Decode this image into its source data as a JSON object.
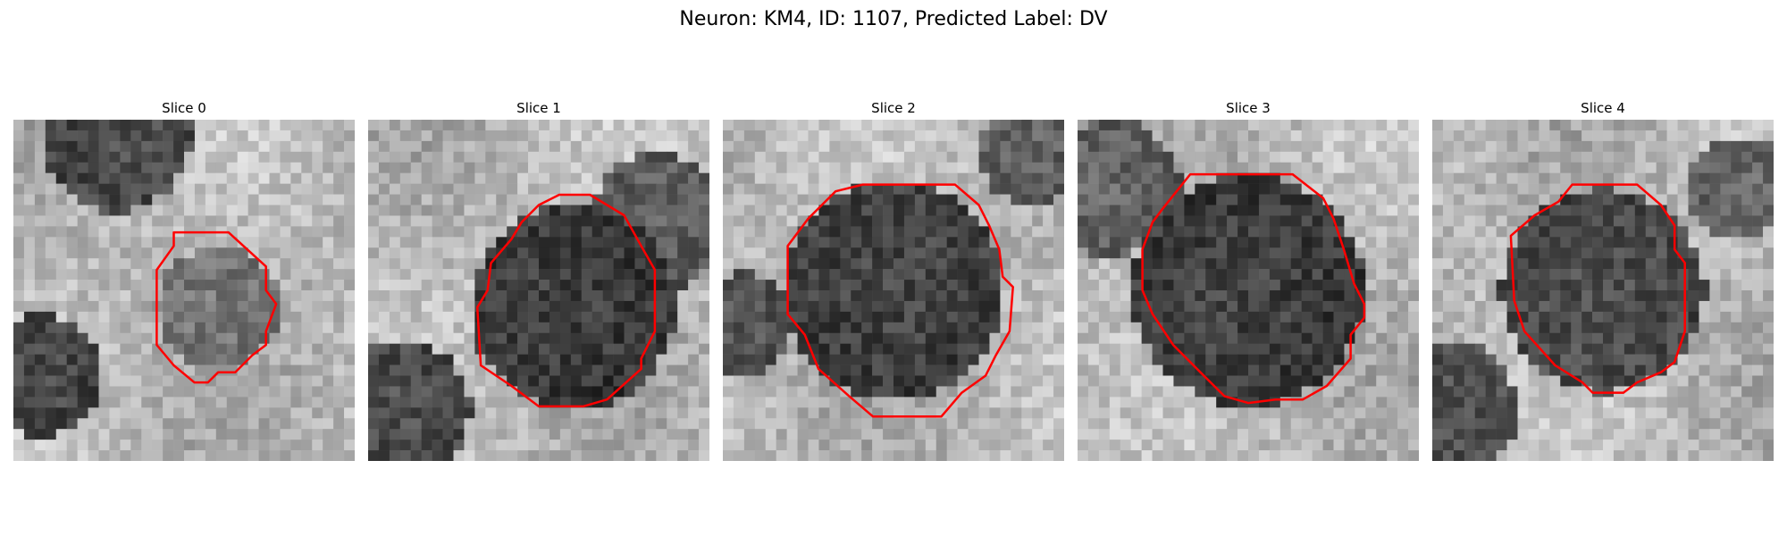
{
  "figure": {
    "title": "Neuron: KM4, ID: 1107, Predicted Label: DV",
    "contour_color": "#ff0000",
    "panels": [
      {
        "title": "Slice 0",
        "texture_seed": 11,
        "blobs": [
          [
            0.3,
            0.05,
            0.22,
            0.12
          ],
          [
            0.08,
            0.75,
            0.18,
            0.08
          ],
          [
            0.6,
            0.55,
            0.18,
            0.35
          ]
        ],
        "center": [
          0.6,
          0.7
        ]
      },
      {
        "title": "Slice 1",
        "texture_seed": 23,
        "blobs": [
          [
            0.6,
            0.55,
            0.3,
            0.05
          ],
          [
            0.1,
            0.85,
            0.2,
            0.1
          ],
          [
            0.85,
            0.3,
            0.2,
            0.2
          ]
        ],
        "center": [
          0.55,
          0.5
        ]
      },
      {
        "title": "Slice 2",
        "texture_seed": 37,
        "blobs": [
          [
            0.5,
            0.5,
            0.32,
            0.08
          ],
          [
            0.05,
            0.6,
            0.15,
            0.15
          ],
          [
            0.9,
            0.1,
            0.15,
            0.25
          ]
        ],
        "center": [
          0.5,
          0.5
        ]
      },
      {
        "title": "Slice 3",
        "texture_seed": 41,
        "blobs": [
          [
            0.5,
            0.5,
            0.34,
            0.05
          ],
          [
            0.1,
            0.2,
            0.2,
            0.25
          ]
        ],
        "center": [
          0.5,
          0.5
        ]
      },
      {
        "title": "Slice 4",
        "texture_seed": 53,
        "blobs": [
          [
            0.5,
            0.5,
            0.3,
            0.12
          ],
          [
            0.05,
            0.85,
            0.2,
            0.15
          ],
          [
            0.9,
            0.2,
            0.15,
            0.25
          ]
        ],
        "center": [
          0.5,
          0.5
        ]
      }
    ],
    "contours": [
      [
        [
          0.47,
          0.33
        ],
        [
          0.63,
          0.33
        ],
        [
          0.74,
          0.43
        ],
        [
          0.74,
          0.5
        ],
        [
          0.77,
          0.54
        ],
        [
          0.74,
          0.62
        ],
        [
          0.74,
          0.66
        ],
        [
          0.7,
          0.69
        ],
        [
          0.65,
          0.74
        ],
        [
          0.6,
          0.74
        ],
        [
          0.57,
          0.77
        ],
        [
          0.53,
          0.77
        ],
        [
          0.47,
          0.72
        ],
        [
          0.42,
          0.66
        ],
        [
          0.42,
          0.44
        ],
        [
          0.47,
          0.37
        ]
      ],
      [
        [
          0.56,
          0.22
        ],
        [
          0.65,
          0.22
        ],
        [
          0.75,
          0.28
        ],
        [
          0.8,
          0.37
        ],
        [
          0.84,
          0.44
        ],
        [
          0.84,
          0.62
        ],
        [
          0.8,
          0.7
        ],
        [
          0.8,
          0.73
        ],
        [
          0.7,
          0.82
        ],
        [
          0.63,
          0.84
        ],
        [
          0.5,
          0.84
        ],
        [
          0.42,
          0.78
        ],
        [
          0.33,
          0.72
        ],
        [
          0.32,
          0.55
        ],
        [
          0.35,
          0.5
        ],
        [
          0.36,
          0.42
        ],
        [
          0.42,
          0.35
        ],
        [
          0.45,
          0.3
        ],
        [
          0.5,
          0.25
        ]
      ],
      [
        [
          0.41,
          0.19
        ],
        [
          0.68,
          0.19
        ],
        [
          0.75,
          0.25
        ],
        [
          0.78,
          0.31
        ],
        [
          0.81,
          0.38
        ],
        [
          0.82,
          0.46
        ],
        [
          0.85,
          0.49
        ],
        [
          0.84,
          0.62
        ],
        [
          0.8,
          0.69
        ],
        [
          0.77,
          0.75
        ],
        [
          0.7,
          0.8
        ],
        [
          0.64,
          0.87
        ],
        [
          0.55,
          0.87
        ],
        [
          0.44,
          0.87
        ],
        [
          0.37,
          0.81
        ],
        [
          0.28,
          0.73
        ],
        [
          0.24,
          0.63
        ],
        [
          0.19,
          0.57
        ],
        [
          0.19,
          0.37
        ],
        [
          0.25,
          0.29
        ],
        [
          0.33,
          0.21
        ]
      ],
      [
        [
          0.33,
          0.16
        ],
        [
          0.63,
          0.16
        ],
        [
          0.72,
          0.23
        ],
        [
          0.75,
          0.29
        ],
        [
          0.78,
          0.38
        ],
        [
          0.81,
          0.48
        ],
        [
          0.84,
          0.54
        ],
        [
          0.84,
          0.58
        ],
        [
          0.8,
          0.63
        ],
        [
          0.8,
          0.7
        ],
        [
          0.73,
          0.78
        ],
        [
          0.66,
          0.82
        ],
        [
          0.58,
          0.82
        ],
        [
          0.5,
          0.83
        ],
        [
          0.43,
          0.81
        ],
        [
          0.36,
          0.74
        ],
        [
          0.28,
          0.66
        ],
        [
          0.22,
          0.57
        ],
        [
          0.19,
          0.5
        ],
        [
          0.19,
          0.38
        ],
        [
          0.22,
          0.3
        ],
        [
          0.25,
          0.26
        ]
      ],
      [
        [
          0.41,
          0.19
        ],
        [
          0.6,
          0.19
        ],
        [
          0.67,
          0.25
        ],
        [
          0.71,
          0.31
        ],
        [
          0.71,
          0.38
        ],
        [
          0.74,
          0.42
        ],
        [
          0.74,
          0.62
        ],
        [
          0.71,
          0.71
        ],
        [
          0.67,
          0.74
        ],
        [
          0.6,
          0.77
        ],
        [
          0.56,
          0.8
        ],
        [
          0.47,
          0.8
        ],
        [
          0.44,
          0.77
        ],
        [
          0.36,
          0.72
        ],
        [
          0.27,
          0.62
        ],
        [
          0.24,
          0.53
        ],
        [
          0.23,
          0.34
        ],
        [
          0.3,
          0.28
        ],
        [
          0.37,
          0.24
        ]
      ]
    ]
  }
}
